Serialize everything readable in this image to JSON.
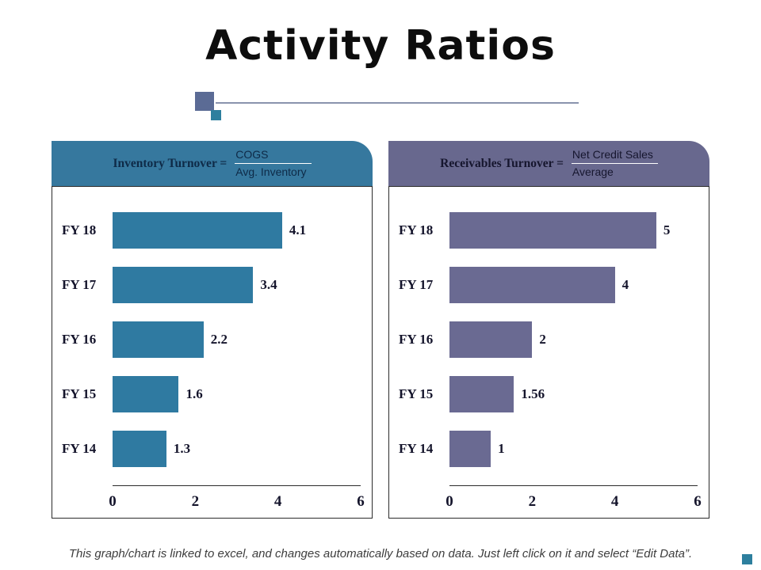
{
  "title": "Activity Ratios",
  "decor": {
    "line_color": "#8a93ad",
    "square_large_color": "#5b6b95",
    "square_small_color": "#2d7f9e",
    "corner_square_color": "#2d7f9e"
  },
  "footer": "This graph/chart is linked to excel, and changes automatically based on data. Just left click on it and select “Edit Data”.",
  "chart_data": [
    {
      "type": "bar",
      "orientation": "horizontal",
      "title": "Inventory Turnover",
      "formula": {
        "label": "Inventory Turnover =",
        "numerator": "COGS",
        "denominator": "Avg. Inventory"
      },
      "categories": [
        "FY 18",
        "FY 17",
        "FY 16",
        "FY 15",
        "FY 14"
      ],
      "values": [
        4.1,
        3.4,
        2.2,
        1.6,
        1.3
      ],
      "value_labels": [
        "4.1",
        "3.4",
        "2.2",
        "1.6",
        "1.3"
      ],
      "xlim": [
        0,
        6
      ],
      "xticks": [
        0,
        2,
        4,
        6
      ],
      "grid": false,
      "legend": false,
      "header_color": "#36789e",
      "header_text_color": "#0e2a47",
      "bar_color": "#2f7aa1"
    },
    {
      "type": "bar",
      "orientation": "horizontal",
      "title": "Receivables Turnover",
      "formula": {
        "label": "Receivables  Turnover =",
        "numerator": "Net Credit Sales",
        "denominator": "Average"
      },
      "categories": [
        "FY 18",
        "FY 17",
        "FY 16",
        "FY 15",
        "FY 14"
      ],
      "values": [
        5,
        4,
        2,
        1.56,
        1
      ],
      "value_labels": [
        "5",
        "4",
        "2",
        "1.56",
        "1"
      ],
      "xlim": [
        0,
        6
      ],
      "xticks": [
        0,
        2,
        4,
        6
      ],
      "grid": false,
      "legend": false,
      "header_color": "#68688e",
      "header_text_color": "#16162e",
      "bar_color": "#6a6a92"
    }
  ]
}
